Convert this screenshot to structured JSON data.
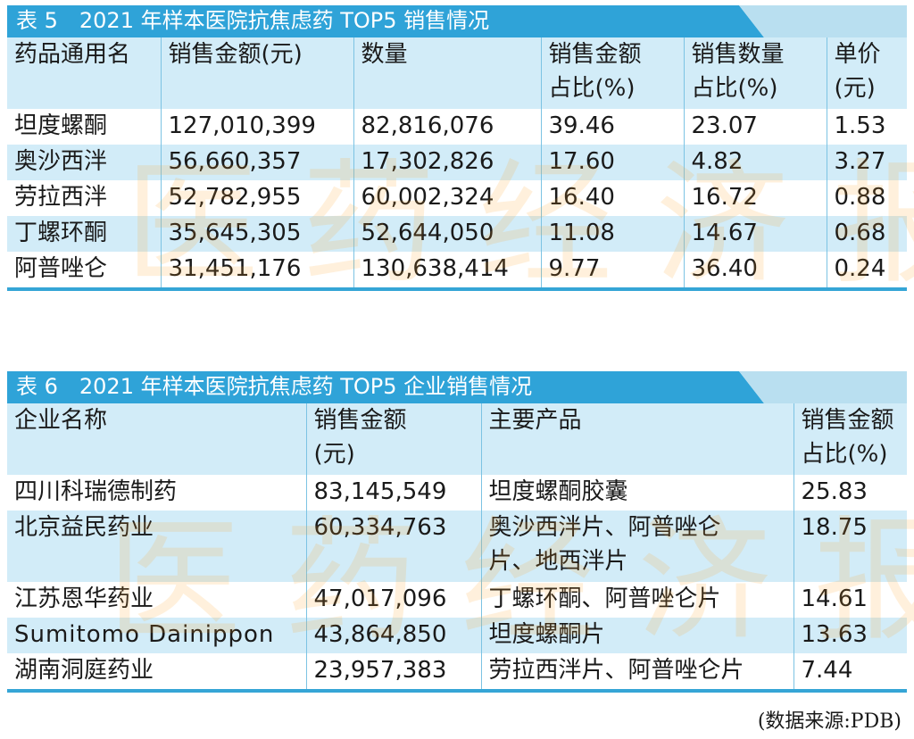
{
  "table5": {
    "title": "表 5　2021 年样本医院抗焦虑药 TOP5 销售情况",
    "headers": [
      "药品通用名",
      "销售金额(元)",
      "数量",
      "销售金额\n占比(%)",
      "销售数量\n占比(%)",
      "单价\n(元)"
    ],
    "rows": [
      [
        "坦度螺酮",
        "127,010,399",
        "82,816,076",
        "39.46",
        "23.07",
        "1.53"
      ],
      [
        "奥沙西泮",
        "56,660,357",
        "17,302,826",
        "17.60",
        "4.82",
        "3.27"
      ],
      [
        "劳拉西泮",
        "52,782,955",
        "60,002,324",
        "16.40",
        "16.72",
        "0.88"
      ],
      [
        "丁螺环酮",
        "35,645,305",
        "52,644,050",
        "11.08",
        "14.67",
        "0.68"
      ],
      [
        "阿普唑仑",
        "31,451,176",
        "130,638,414",
        "9.77",
        "36.40",
        "0.24"
      ]
    ]
  },
  "table6": {
    "title": "表 6　2021 年样本医院抗焦虑药 TOP5 企业销售情况",
    "headers": [
      "企业名称",
      "销售金额\n(元)",
      "主要产品",
      "销售金额\n占比(%)"
    ],
    "rows": [
      [
        "四川科瑞德制药",
        "83,145,549",
        "坦度螺酮胶囊",
        "25.83"
      ],
      [
        "北京益民药业",
        "60,334,763",
        "奥沙西泮片、阿普唑仑\n片、地西泮片",
        "18.75"
      ],
      [
        "江苏恩华药业",
        "47,017,096",
        "丁螺环酮、阿普唑仑片",
        "14.61"
      ],
      [
        "Sumitomo Dainippon",
        "43,864,850",
        "坦度螺酮片",
        "13.63"
      ],
      [
        "湖南洞庭药业",
        "23,957,383",
        "劳拉西泮片、阿普唑仑片",
        "7.44"
      ]
    ]
  },
  "watermark": "医药经济报",
  "source": "(数据来源:PDB)",
  "colors": {
    "title_bar": "#2fa3d8",
    "row_tint": "#d2ecf8",
    "rule": "#35a5d6",
    "watermark": "#ffa028"
  }
}
